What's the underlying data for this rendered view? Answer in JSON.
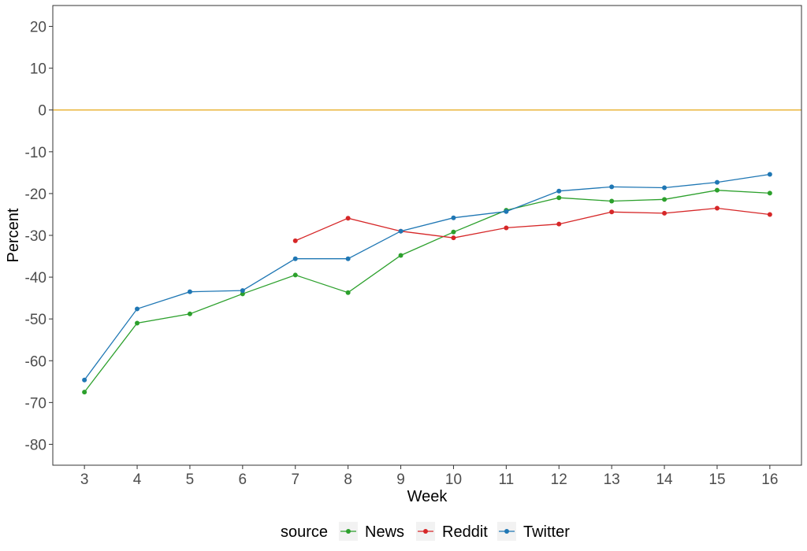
{
  "chart_data": {
    "type": "line",
    "xlabel": "Week",
    "ylabel": "Percent",
    "x_ticks": [
      3,
      4,
      5,
      6,
      7,
      8,
      9,
      10,
      11,
      12,
      13,
      14,
      15,
      16
    ],
    "y_ticks": [
      20,
      10,
      0,
      -10,
      -20,
      -30,
      -40,
      -50,
      -60,
      -70,
      -80
    ],
    "xlim": [
      2.4,
      16.6
    ],
    "ylim": [
      -85,
      25
    ],
    "grid": false,
    "reference_line": {
      "y": 0,
      "color": "#E6A817"
    },
    "legend": {
      "title": "source",
      "position": "bottom"
    },
    "series": [
      {
        "name": "News",
        "color": "#2CA02C",
        "x": [
          3,
          4,
          5,
          6,
          7,
          8,
          9,
          10,
          11,
          12,
          13,
          14,
          15,
          16
        ],
        "y": [
          -67.5,
          -51,
          -48.8,
          -44,
          -39.5,
          -43.7,
          -34.8,
          -29.2,
          -24,
          -21,
          -21.8,
          -21.4,
          -19.2,
          -19.9
        ]
      },
      {
        "name": "Reddit",
        "color": "#D62728",
        "x": [
          7,
          8,
          9,
          10,
          11,
          12,
          13,
          14,
          15,
          16
        ],
        "y": [
          -31.3,
          -25.9,
          -29,
          -30.6,
          -28.2,
          -27.3,
          -24.4,
          -24.7,
          -23.5,
          -25
        ]
      },
      {
        "name": "Twitter",
        "color": "#1F77B4",
        "x": [
          3,
          4,
          5,
          6,
          7,
          8,
          9,
          10,
          11,
          12,
          13,
          14,
          15,
          16
        ],
        "y": [
          -64.6,
          -47.6,
          -43.5,
          -43.2,
          -35.6,
          -35.6,
          -29,
          -25.8,
          -24.3,
          -19.4,
          -18.4,
          -18.6,
          -17.3,
          -15.4
        ]
      }
    ]
  }
}
